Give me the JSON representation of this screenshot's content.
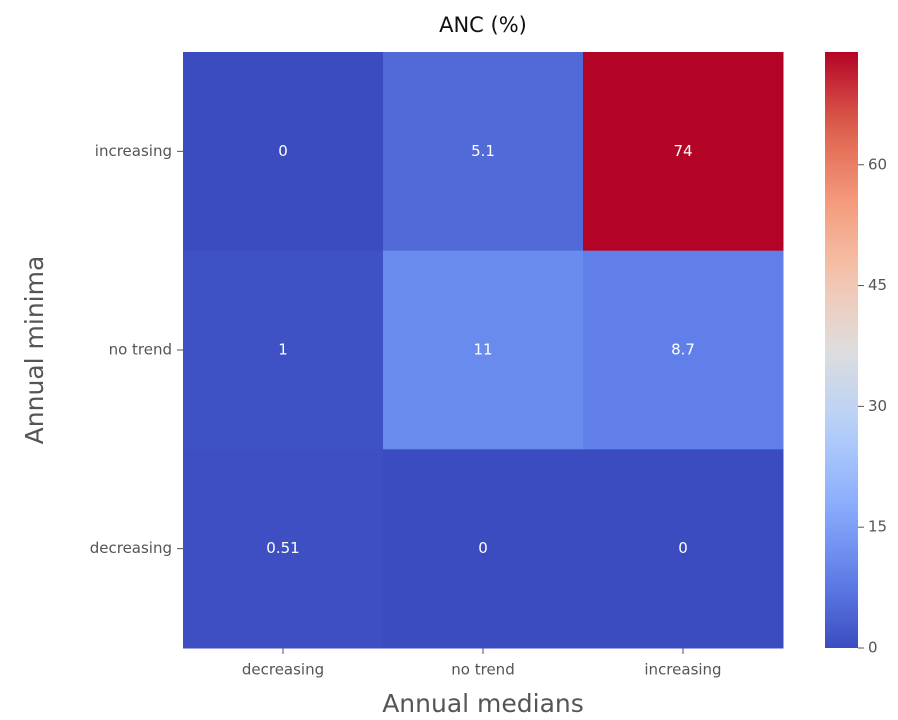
{
  "chart_data": {
    "type": "heatmap",
    "title": "ANC (%)",
    "xlabel": "Annual medians",
    "ylabel": "Annual minima",
    "x_categories": [
      "decreasing",
      "no trend",
      "increasing"
    ],
    "y_categories": [
      "increasing",
      "no trend",
      "decreasing"
    ],
    "values": [
      [
        0,
        5.1,
        74
      ],
      [
        1,
        11,
        8.7
      ],
      [
        0.51,
        0,
        0
      ]
    ],
    "colormap": "coolwarm",
    "clim": [
      0,
      74
    ],
    "cticks": [
      0,
      15,
      30,
      45,
      60
    ]
  }
}
